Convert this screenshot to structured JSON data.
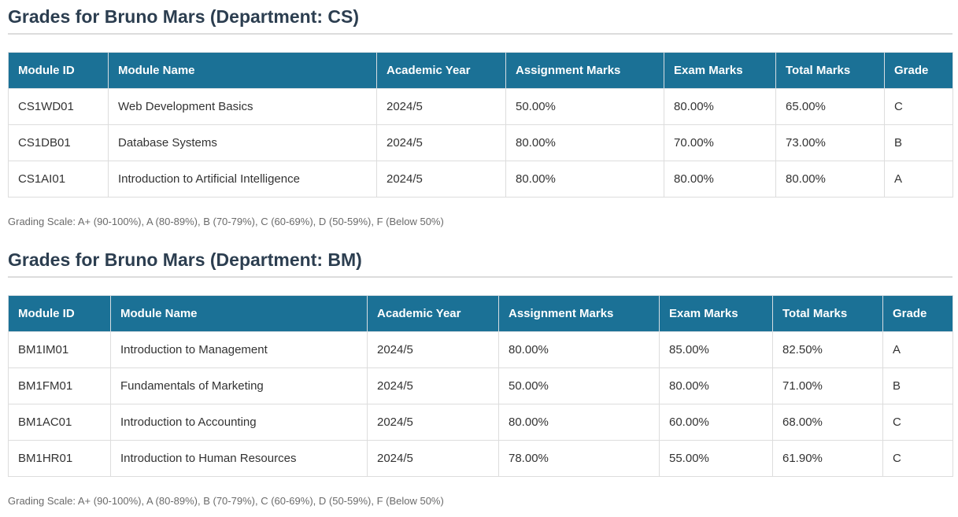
{
  "sections": [
    {
      "title": "Grades for Bruno Mars (Department: CS)",
      "headers": [
        "Module ID",
        "Module Name",
        "Academic Year",
        "Assignment Marks",
        "Exam Marks",
        "Total Marks",
        "Grade"
      ],
      "rows": [
        [
          "CS1WD01",
          "Web Development Basics",
          "2024/5",
          "50.00%",
          "80.00%",
          "65.00%",
          "C"
        ],
        [
          "CS1DB01",
          "Database Systems",
          "2024/5",
          "80.00%",
          "70.00%",
          "73.00%",
          "B"
        ],
        [
          "CS1AI01",
          "Introduction to Artificial Intelligence",
          "2024/5",
          "80.00%",
          "80.00%",
          "80.00%",
          "A"
        ]
      ],
      "grading_scale": "Grading Scale: A+ (90-100%), A (80-89%), B (70-79%), C (60-69%), D (50-59%), F (Below 50%)"
    },
    {
      "title": "Grades for Bruno Mars (Department: BM)",
      "headers": [
        "Module ID",
        "Module Name",
        "Academic Year",
        "Assignment Marks",
        "Exam Marks",
        "Total Marks",
        "Grade"
      ],
      "rows": [
        [
          "BM1IM01",
          "Introduction to Management",
          "2024/5",
          "80.00%",
          "85.00%",
          "82.50%",
          "A"
        ],
        [
          "BM1FM01",
          "Fundamentals of Marketing",
          "2024/5",
          "50.00%",
          "80.00%",
          "71.00%",
          "B"
        ],
        [
          "BM1AC01",
          "Introduction to Accounting",
          "2024/5",
          "80.00%",
          "60.00%",
          "68.00%",
          "C"
        ],
        [
          "BM1HR01",
          "Introduction to Human Resources",
          "2024/5",
          "78.00%",
          "55.00%",
          "61.90%",
          "C"
        ]
      ],
      "grading_scale": "Grading Scale: A+ (90-100%), A (80-89%), B (70-79%), C (60-69%), D (50-59%), F (Below 50%)"
    }
  ],
  "colors": {
    "header_bg": "#1b7196",
    "title_text": "#2c3e50",
    "scale_text": "#6b6b6b"
  }
}
